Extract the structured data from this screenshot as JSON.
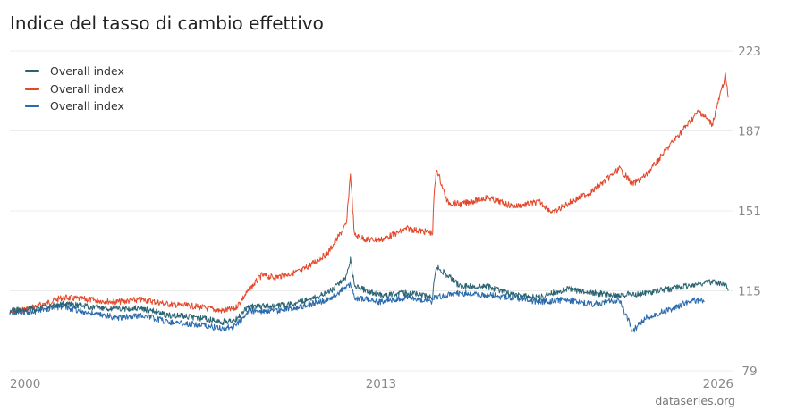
{
  "title": "Indice del tasso di cambio effettivo",
  "source": "dataseries.org",
  "chart_data": {
    "type": "line",
    "title": "Indice del tasso di cambio effettivo",
    "xlabel": "",
    "ylabel": "",
    "xlim": [
      1999.0,
      2026.3
    ],
    "ylim": [
      79,
      223
    ],
    "y_ticks": [
      79,
      115,
      151,
      187,
      223
    ],
    "y_tick_labels": [
      "79",
      "115",
      "151",
      "187",
      "223"
    ],
    "x_ticks": [
      1999.0,
      2013.0,
      2026.0
    ],
    "x_tick_labels": [
      "2000",
      "2013",
      "2026"
    ],
    "grid": true,
    "legend_position": "top-left",
    "series": [
      {
        "name": "Overall index",
        "color": "#e4472a",
        "x": [
          1999.0,
          2000.0,
          2001.0,
          2002.0,
          2003.0,
          2004.0,
          2005.0,
          2006.0,
          2007.0,
          2007.5,
          2008.0,
          2008.5,
          2009.0,
          2010.0,
          2011.0,
          2011.7,
          2011.85,
          2012.0,
          2012.5,
          2013.0,
          2014.0,
          2014.95,
          2015.0,
          2015.1,
          2015.5,
          2016.0,
          2017.0,
          2018.0,
          2019.0,
          2019.5,
          2020.0,
          2021.0,
          2022.0,
          2022.5,
          2023.0,
          2024.0,
          2025.0,
          2025.5,
          2026.0,
          2026.1
        ],
        "y": [
          105,
          108,
          112,
          111,
          110,
          111,
          109,
          108,
          106,
          107,
          115,
          122,
          121,
          124,
          132,
          145,
          168,
          140,
          138,
          138,
          143,
          141,
          157,
          170,
          155,
          154,
          157,
          153,
          155,
          150,
          154,
          160,
          170,
          163,
          167,
          182,
          196,
          190,
          212,
          202
        ]
      },
      {
        "name": "Overall index",
        "color": "#2a6aad",
        "x": [
          1999.0,
          2000.0,
          2001.0,
          2002.0,
          2003.0,
          2004.0,
          2005.0,
          2006.0,
          2007.0,
          2007.5,
          2008.0,
          2009.0,
          2010.0,
          2011.0,
          2011.85,
          2012.0,
          2013.0,
          2014.0,
          2014.95,
          2015.0,
          2016.0,
          2017.0,
          2018.0,
          2019.0,
          2020.0,
          2021.0,
          2022.0,
          2022.5,
          2023.0,
          2024.0,
          2024.8,
          2025.2
        ],
        "y": [
          105,
          106,
          108,
          105,
          103,
          104,
          101,
          100,
          98,
          99,
          106,
          106,
          108,
          111,
          118,
          112,
          110,
          112,
          110,
          112,
          114,
          113,
          112,
          110,
          111,
          109,
          111,
          97,
          103,
          107,
          111,
          110
        ]
      },
      {
        "name": "Overall index",
        "color": "#2a6472",
        "x": [
          1999.0,
          2000.0,
          2001.0,
          2002.0,
          2003.0,
          2004.0,
          2005.0,
          2006.0,
          2007.0,
          2007.5,
          2008.0,
          2009.0,
          2010.0,
          2011.0,
          2011.7,
          2011.85,
          2012.0,
          2013.0,
          2014.0,
          2014.95,
          2015.0,
          2015.1,
          2016.0,
          2017.0,
          2018.0,
          2019.0,
          2020.0,
          2021.0,
          2022.0,
          2023.0,
          2024.0,
          2025.0,
          2025.5,
          2026.0,
          2026.1
        ],
        "y": [
          106,
          107,
          109,
          108,
          107,
          107,
          104,
          103,
          101,
          102,
          108,
          108,
          110,
          114,
          121,
          130,
          117,
          113,
          114,
          112,
          118,
          126,
          117,
          117,
          113,
          112,
          116,
          114,
          113,
          114,
          116,
          118,
          119,
          118,
          115
        ]
      }
    ]
  }
}
